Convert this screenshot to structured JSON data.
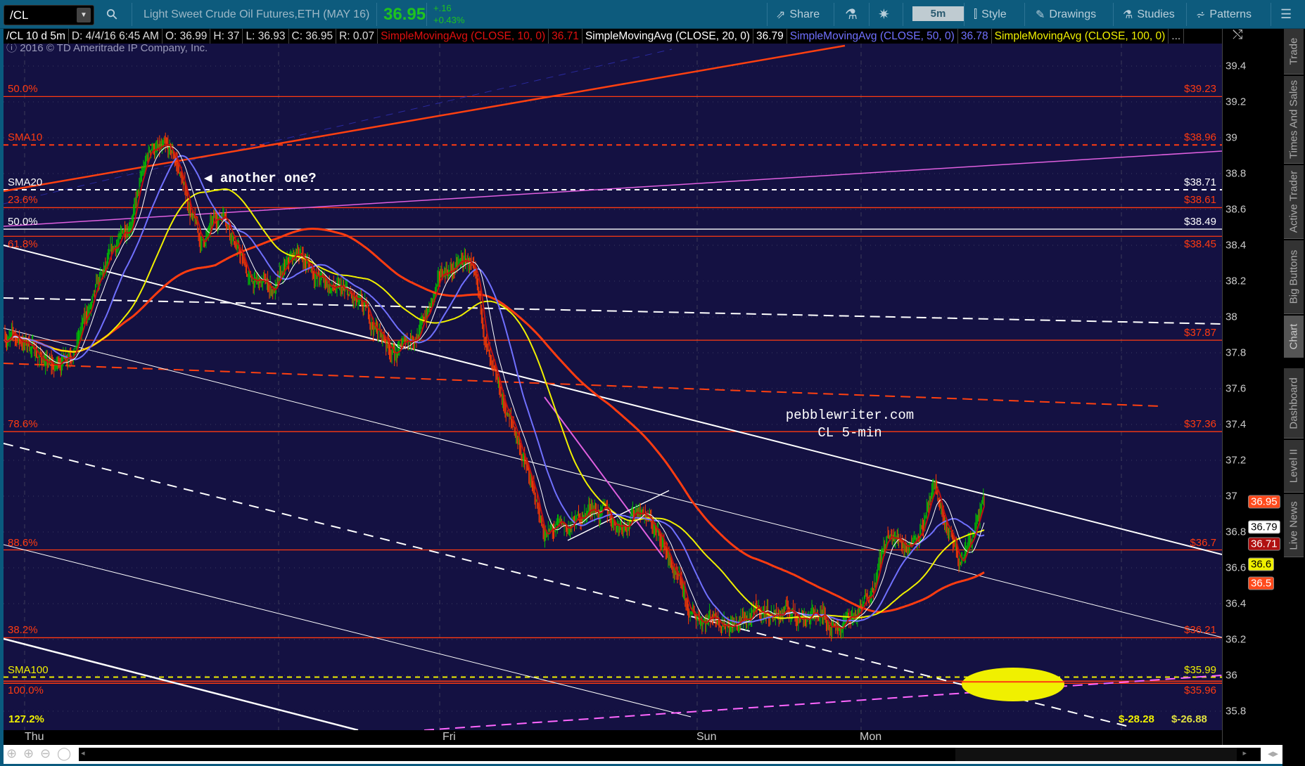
{
  "toolbar": {
    "symbol": "/CL",
    "description": "Light Sweet Crude Oil Futures,ETH (MAY 16)",
    "last": "36.95",
    "change": "+.16",
    "change_pct": "+0.43%",
    "share": "Share",
    "timeframe": "5m",
    "style": "Style",
    "drawings": "Drawings",
    "studies": "Studies",
    "patterns": "Patterns"
  },
  "header": {
    "symbol_period": "/CL 10 d 5m",
    "date": "D: 4/4/16 6:45 AM",
    "open": "O: 36.99",
    "high": "H: 37",
    "low": "L: 36.93",
    "close": "C: 36.95",
    "range": "R: 0.07",
    "studies": [
      {
        "label": "SimpleMovingAvg (CLOSE, 10, 0)",
        "value": "36.71",
        "color": "#e01010"
      },
      {
        "label": "SimpleMovingAvg (CLOSE, 20, 0)",
        "value": "36.79",
        "color": "#ffffff"
      },
      {
        "label": "SimpleMovingAvg (CLOSE, 50, 0)",
        "value": "36.78",
        "color": "#7070ff"
      },
      {
        "label": "SimpleMovingAvg (CLOSE, 100, 0)",
        "value": "",
        "color": "#f0f000"
      }
    ],
    "more": "..."
  },
  "copyright": "2016 © TD Ameritrade IP Company, Inc.",
  "annotations": {
    "arrow_note": "another one?",
    "site": "pebblewriter.com",
    "chart_label": "CL 5-min"
  },
  "chart_data": {
    "type": "candlestick",
    "instrument": "/CL",
    "interval": "5m",
    "ylim": [
      35.7,
      39.55
    ],
    "y_ticks": [
      39.4,
      39.2,
      39,
      38.8,
      38.6,
      38.4,
      38.2,
      38,
      37.8,
      37.6,
      37.4,
      37.2,
      37,
      36.8,
      36.6,
      36.4,
      36.2,
      36,
      35.8
    ],
    "x_ticks": [
      "Thu",
      "Fri",
      "Sun",
      "Mon"
    ],
    "approx_closes": [
      37.9,
      37.85,
      37.7,
      37.9,
      38.2,
      38.5,
      38.95,
      38.85,
      38.4,
      38.6,
      38.2,
      38.15,
      38.35,
      38.2,
      38.1,
      37.95,
      37.8,
      37.95,
      38.25,
      38.3,
      37.6,
      37.3,
      36.8,
      36.8,
      36.95,
      36.85,
      36.95,
      36.7,
      36.3,
      36.35,
      36.3,
      36.35,
      36.35,
      36.35,
      36.3,
      36.35,
      36.75,
      36.75,
      37.0,
      36.6,
      36.95
    ],
    "levels": [
      {
        "left": "50.0%",
        "right": "$39.23",
        "price": 39.23,
        "color": "#ff3a10",
        "style": "solid"
      },
      {
        "left": "SMA10",
        "right": "$38.96",
        "price": 38.96,
        "color": "#ff3a10",
        "style": "dashed"
      },
      {
        "left": "SMA20",
        "right": "$38.71",
        "price": 38.71,
        "color": "#ffffff",
        "style": "dashed"
      },
      {
        "left": "23.6%",
        "right": "$38.61",
        "price": 38.61,
        "color": "#ff3a10",
        "style": "solid"
      },
      {
        "left": "50.0%",
        "right": "$38.49",
        "price": 38.49,
        "color": "#ffffff",
        "style": "solid"
      },
      {
        "left": "61.8%",
        "right": "$38.45",
        "price": 38.45,
        "color": "#ff3a10",
        "style": "solid"
      },
      {
        "left": "",
        "right": "$37.87",
        "price": 37.87,
        "color": "#ff3a10",
        "style": "solid"
      },
      {
        "left": "78.6%",
        "right": "$37.36",
        "price": 37.36,
        "color": "#ff3a10",
        "style": "solid"
      },
      {
        "left": "88.6%",
        "right": "$36.7",
        "price": 36.7,
        "color": "#ff3a10",
        "style": "solid"
      },
      {
        "left": "38.2%",
        "right": "$36.21",
        "price": 36.21,
        "color": "#ff3a10",
        "style": "solid"
      },
      {
        "left": "SMA100",
        "right": "$35.99",
        "price": 35.99,
        "color": "#f0f000",
        "style": "dashed"
      },
      {
        "left": "100.0%",
        "right": "$35.96",
        "price": 35.96,
        "color": "#ff3a10",
        "style": "double"
      }
    ],
    "bottom_left": "127.2%",
    "bottom_right_a": "$-28.28",
    "bottom_right_b": "$-26.88",
    "badges": [
      {
        "value": "36.95",
        "price": 36.95,
        "bg": "#ff4a1c",
        "fg": "#fff"
      },
      {
        "value": "36.79",
        "price": 36.79,
        "bg": "#ffffff",
        "fg": "#000"
      },
      {
        "value": "36.71",
        "price": 36.71,
        "bg": "#b01010",
        "fg": "#fff"
      },
      {
        "value": "36.6",
        "price": 36.6,
        "bg": "#f0f000",
        "fg": "#000"
      },
      {
        "value": "36.5",
        "price": 36.5,
        "bg": "#ff4a1c",
        "fg": "#fff"
      }
    ],
    "colors": {
      "up": "#00c000",
      "down": "#ff3c00",
      "sma10": "#c01010",
      "sma20": "#ffffff",
      "sma50": "#7070ff",
      "sma100": "#f0f000",
      "long_avg": "#ff3c10",
      "background": "#141142"
    }
  },
  "side_tabs": [
    "Trade",
    "Times And Sales",
    "Active Trader",
    "Big Buttons",
    "Chart",
    "Dashboard",
    "Level II",
    "Live News"
  ],
  "active_tab": "Chart"
}
